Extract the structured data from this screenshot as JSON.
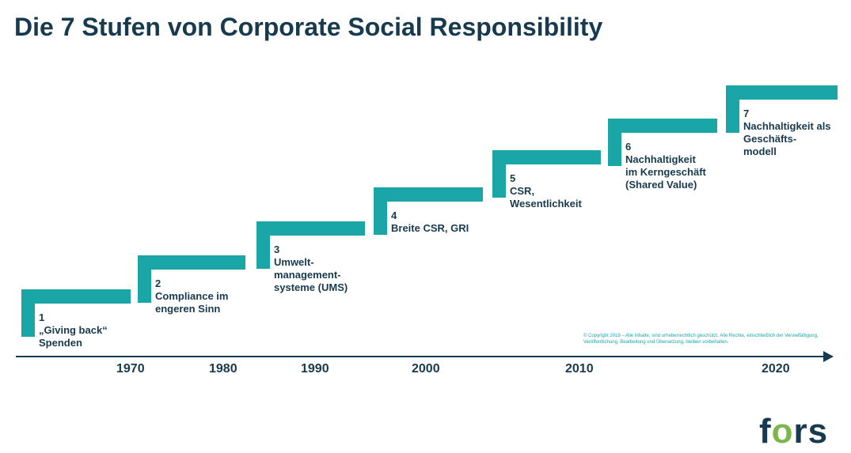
{
  "title": "Die 7 Stufen von Corporate Social Responsibility",
  "colors": {
    "accent": "#1aa6a6",
    "text": "#183a4e",
    "logo_o": "#7ab648"
  },
  "steps": [
    {
      "number": "1",
      "lines": [
        "„Giving back“",
        "Spenden"
      ]
    },
    {
      "number": "2",
      "lines": [
        "Compliance im",
        "engeren Sinn"
      ]
    },
    {
      "number": "3",
      "lines": [
        "Umwelt-",
        "management-",
        "systeme (UMS)"
      ]
    },
    {
      "number": "4",
      "lines": [
        "Breite CSR, GRI"
      ]
    },
    {
      "number": "5",
      "lines": [
        "CSR,",
        "Wesentlichkeit"
      ]
    },
    {
      "number": "6",
      "lines": [
        "Nachhaltigkeit",
        "im Kerngeschäft",
        "(Shared Value)"
      ]
    },
    {
      "number": "7",
      "lines": [
        "Nachhaltigkeit als",
        "Geschäfts-",
        "modell"
      ]
    }
  ],
  "timeline": {
    "years": [
      "1970",
      "1980",
      "1990",
      "2000",
      "2010",
      "2020"
    ]
  },
  "copyright": "© Copyright 2019 – Alle Inhalte, sind urheberrechtlich geschützt. Alle Rechte, einschließlich der Vervielfältigung, Veröffentlichung, Bearbeitung und Übersetzung, bleiben vorbehalten.",
  "logo": {
    "text": "fors"
  }
}
